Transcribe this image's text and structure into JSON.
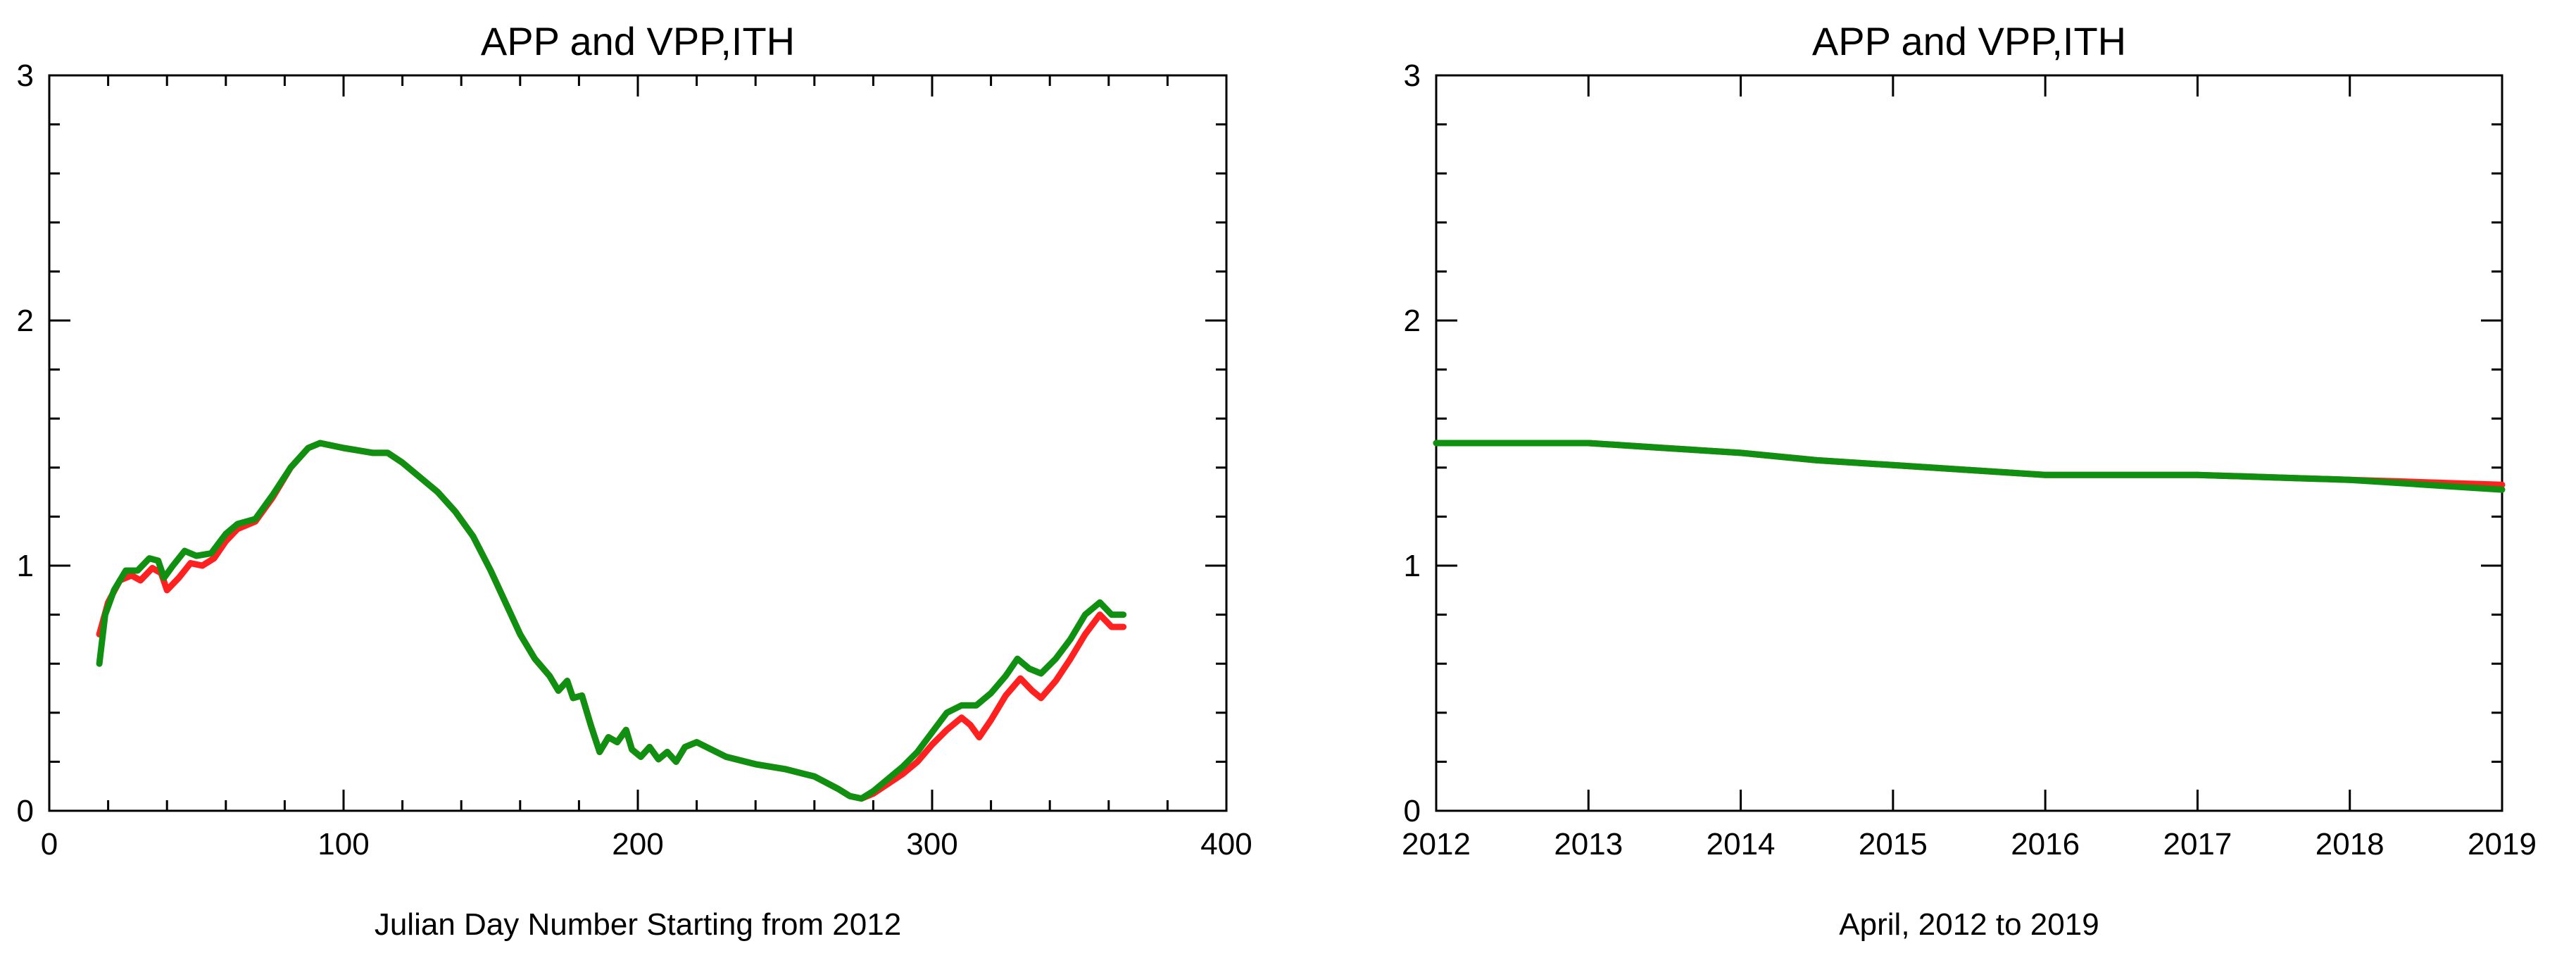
{
  "chart_data": [
    {
      "type": "line",
      "title": "APP and VPP,ITH",
      "xlabel": "Julian Day Number Starting from 2012",
      "ylabel": "",
      "xlim": [
        0,
        400
      ],
      "ylim": [
        0,
        3
      ],
      "xticks": [
        0,
        100,
        200,
        300,
        400
      ],
      "yticks": [
        0,
        1,
        2,
        3
      ],
      "colors": [
        "#ff2020",
        "#109010"
      ],
      "series": [
        {
          "points": [
            [
              17,
              0.72
            ],
            [
              20,
              0.85
            ],
            [
              24,
              0.94
            ],
            [
              28,
              0.96
            ],
            [
              31,
              0.94
            ],
            [
              35,
              0.99
            ],
            [
              38,
              0.97
            ],
            [
              40,
              0.9
            ],
            [
              44,
              0.95
            ],
            [
              48,
              1.01
            ],
            [
              52,
              1.0
            ],
            [
              56,
              1.03
            ],
            [
              60,
              1.1
            ],
            [
              64,
              1.15
            ],
            [
              70,
              1.18
            ],
            [
              76,
              1.28
            ],
            [
              82,
              1.4
            ],
            [
              88,
              1.48
            ],
            [
              92,
              1.5
            ],
            [
              100,
              1.48
            ],
            [
              110,
              1.46
            ],
            [
              115,
              1.46
            ],
            [
              120,
              1.42
            ],
            [
              126,
              1.36
            ],
            [
              132,
              1.3
            ],
            [
              138,
              1.22
            ],
            [
              144,
              1.12
            ],
            [
              150,
              0.98
            ],
            [
              155,
              0.85
            ],
            [
              160,
              0.72
            ],
            [
              165,
              0.62
            ],
            [
              170,
              0.55
            ],
            [
              173,
              0.49
            ],
            [
              176,
              0.53
            ],
            [
              178,
              0.46
            ],
            [
              181,
              0.47
            ],
            [
              184,
              0.35
            ],
            [
              187,
              0.24
            ],
            [
              190,
              0.3
            ],
            [
              193,
              0.28
            ],
            [
              196,
              0.33
            ],
            [
              198,
              0.25
            ],
            [
              201,
              0.22
            ],
            [
              204,
              0.26
            ],
            [
              207,
              0.21
            ],
            [
              210,
              0.24
            ],
            [
              213,
              0.2
            ],
            [
              216,
              0.26
            ],
            [
              220,
              0.28
            ],
            [
              225,
              0.25
            ],
            [
              230,
              0.22
            ],
            [
              240,
              0.19
            ],
            [
              250,
              0.17
            ],
            [
              260,
              0.14
            ],
            [
              268,
              0.09
            ],
            [
              272,
              0.06
            ],
            [
              276,
              0.05
            ],
            [
              280,
              0.07
            ],
            [
              285,
              0.11
            ],
            [
              290,
              0.15
            ],
            [
              295,
              0.2
            ],
            [
              300,
              0.27
            ],
            [
              305,
              0.33
            ],
            [
              310,
              0.38
            ],
            [
              313,
              0.35
            ],
            [
              316,
              0.3
            ],
            [
              320,
              0.37
            ],
            [
              325,
              0.47
            ],
            [
              330,
              0.54
            ],
            [
              334,
              0.49
            ],
            [
              337,
              0.46
            ],
            [
              342,
              0.53
            ],
            [
              347,
              0.62
            ],
            [
              352,
              0.72
            ],
            [
              357,
              0.8
            ],
            [
              361,
              0.75
            ],
            [
              365,
              0.75
            ]
          ]
        },
        {
          "points": [
            [
              17,
              0.6
            ],
            [
              19,
              0.8
            ],
            [
              22,
              0.9
            ],
            [
              26,
              0.98
            ],
            [
              30,
              0.98
            ],
            [
              34,
              1.03
            ],
            [
              37,
              1.02
            ],
            [
              39,
              0.95
            ],
            [
              42,
              1.0
            ],
            [
              46,
              1.06
            ],
            [
              50,
              1.04
            ],
            [
              55,
              1.05
            ],
            [
              60,
              1.13
            ],
            [
              64,
              1.17
            ],
            [
              70,
              1.19
            ],
            [
              76,
              1.29
            ],
            [
              82,
              1.4
            ],
            [
              88,
              1.48
            ],
            [
              92,
              1.5
            ],
            [
              100,
              1.48
            ],
            [
              110,
              1.46
            ],
            [
              115,
              1.46
            ],
            [
              120,
              1.42
            ],
            [
              126,
              1.36
            ],
            [
              132,
              1.3
            ],
            [
              138,
              1.22
            ],
            [
              144,
              1.12
            ],
            [
              150,
              0.98
            ],
            [
              155,
              0.85
            ],
            [
              160,
              0.72
            ],
            [
              165,
              0.62
            ],
            [
              170,
              0.55
            ],
            [
              173,
              0.49
            ],
            [
              176,
              0.53
            ],
            [
              178,
              0.46
            ],
            [
              181,
              0.47
            ],
            [
              184,
              0.35
            ],
            [
              187,
              0.24
            ],
            [
              190,
              0.3
            ],
            [
              193,
              0.28
            ],
            [
              196,
              0.33
            ],
            [
              198,
              0.25
            ],
            [
              201,
              0.22
            ],
            [
              204,
              0.26
            ],
            [
              207,
              0.21
            ],
            [
              210,
              0.24
            ],
            [
              213,
              0.2
            ],
            [
              216,
              0.26
            ],
            [
              220,
              0.28
            ],
            [
              225,
              0.25
            ],
            [
              230,
              0.22
            ],
            [
              240,
              0.19
            ],
            [
              250,
              0.17
            ],
            [
              260,
              0.14
            ],
            [
              268,
              0.09
            ],
            [
              272,
              0.06
            ],
            [
              276,
              0.05
            ],
            [
              280,
              0.08
            ],
            [
              285,
              0.13
            ],
            [
              290,
              0.18
            ],
            [
              295,
              0.24
            ],
            [
              300,
              0.32
            ],
            [
              305,
              0.4
            ],
            [
              310,
              0.43
            ],
            [
              315,
              0.43
            ],
            [
              320,
              0.48
            ],
            [
              325,
              0.55
            ],
            [
              329,
              0.62
            ],
            [
              333,
              0.58
            ],
            [
              337,
              0.56
            ],
            [
              342,
              0.62
            ],
            [
              347,
              0.7
            ],
            [
              352,
              0.8
            ],
            [
              357,
              0.85
            ],
            [
              361,
              0.8
            ],
            [
              365,
              0.8
            ]
          ]
        }
      ]
    },
    {
      "type": "line",
      "title": "APP and VPP,ITH",
      "xlabel": "April, 2012 to 2019",
      "ylabel": "",
      "xlim": [
        2012,
        2019
      ],
      "ylim": [
        0,
        3
      ],
      "xticks": [
        2012,
        2013,
        2014,
        2015,
        2016,
        2017,
        2018,
        2019
      ],
      "yticks": [
        0,
        1,
        2,
        3
      ],
      "colors": [
        "#ff2020",
        "#109010"
      ],
      "series": [
        {
          "points": [
            [
              2012,
              1.5
            ],
            [
              2012.5,
              1.5
            ],
            [
              2013,
              1.5
            ],
            [
              2013.5,
              1.48
            ],
            [
              2014,
              1.46
            ],
            [
              2014.5,
              1.43
            ],
            [
              2015,
              1.41
            ],
            [
              2015.5,
              1.39
            ],
            [
              2016,
              1.37
            ],
            [
              2016.5,
              1.37
            ],
            [
              2017,
              1.37
            ],
            [
              2017.5,
              1.36
            ],
            [
              2018,
              1.35
            ],
            [
              2018.5,
              1.34
            ],
            [
              2019,
              1.33
            ]
          ]
        },
        {
          "points": [
            [
              2012,
              1.5
            ],
            [
              2012.5,
              1.5
            ],
            [
              2013,
              1.5
            ],
            [
              2013.5,
              1.48
            ],
            [
              2014,
              1.46
            ],
            [
              2014.5,
              1.43
            ],
            [
              2015,
              1.41
            ],
            [
              2015.5,
              1.39
            ],
            [
              2016,
              1.37
            ],
            [
              2016.5,
              1.37
            ],
            [
              2017,
              1.37
            ],
            [
              2017.5,
              1.36
            ],
            [
              2018,
              1.35
            ],
            [
              2018.5,
              1.33
            ],
            [
              2019,
              1.31
            ]
          ]
        }
      ]
    }
  ]
}
